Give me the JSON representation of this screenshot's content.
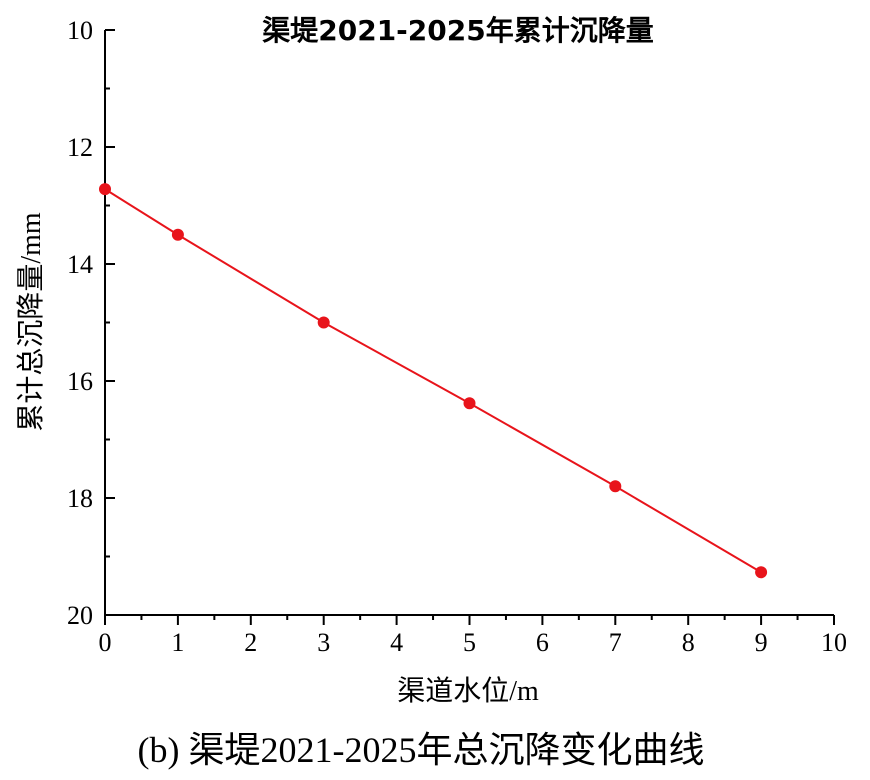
{
  "chart_data": {
    "type": "line",
    "title": "渠堤2021-2025年累计沉降量",
    "xlabel": "渠道水位/m",
    "ylabel": "累计总沉降量/mm",
    "caption": "(b) 渠堤2021-2025年总沉降变化曲线",
    "xlim": [
      0,
      10
    ],
    "ylim": [
      10,
      20
    ],
    "y_inverted": true,
    "x_ticks": [
      0,
      1,
      2,
      3,
      4,
      5,
      6,
      7,
      8,
      9,
      10
    ],
    "y_ticks": [
      10,
      12,
      14,
      16,
      18,
      20
    ],
    "grid": false,
    "series": [
      {
        "color": "#e8141b",
        "marker": "circle",
        "x": [
          0,
          1,
          3,
          5,
          7,
          9
        ],
        "y": [
          12.72,
          13.5,
          15.0,
          16.38,
          17.8,
          19.27
        ]
      }
    ]
  }
}
